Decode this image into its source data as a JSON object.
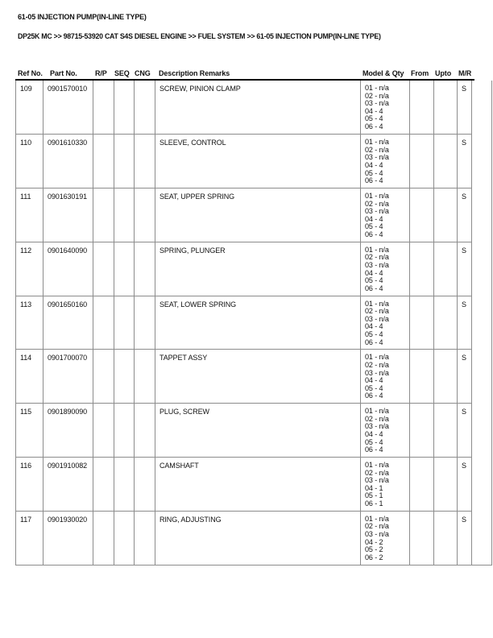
{
  "page": {
    "title": "61-05 INJECTION PUMP(IN-LINE TYPE)",
    "breadcrumb": "DP25K MC >> 98715-53920 CAT S4S DIESEL ENGINE >> FUEL SYSTEM >> 61-05 INJECTION PUMP(IN-LINE TYPE)"
  },
  "table": {
    "columns": [
      "Ref No.",
      "Part No.",
      "R/P",
      "SEQ",
      "CNG",
      "Description Remarks",
      "Model & Qty",
      "From",
      "Upto",
      "M/R"
    ],
    "rows": [
      {
        "ref_no": "109",
        "part_no": "0901570010",
        "rp": "",
        "seq": "",
        "cng": "",
        "description": "SCREW, PINION CLAMP",
        "model_qty": [
          "01 - n/a",
          "02 - n/a",
          "03 - n/a",
          "04 - 4",
          "05 - 4",
          "06 - 4"
        ],
        "from": "",
        "upto": "",
        "mr": "S"
      },
      {
        "ref_no": "110",
        "part_no": "0901610330",
        "rp": "",
        "seq": "",
        "cng": "",
        "description": "SLEEVE, CONTROL",
        "model_qty": [
          "01 - n/a",
          "02 - n/a",
          "03 - n/a",
          "04 - 4",
          "05 - 4",
          "06 - 4"
        ],
        "from": "",
        "upto": "",
        "mr": "S"
      },
      {
        "ref_no": "111",
        "part_no": "0901630191",
        "rp": "",
        "seq": "",
        "cng": "",
        "description": "SEAT, UPPER SPRING",
        "model_qty": [
          "01 - n/a",
          "02 - n/a",
          "03 - n/a",
          "04 - 4",
          "05 - 4",
          "06 - 4"
        ],
        "from": "",
        "upto": "",
        "mr": "S"
      },
      {
        "ref_no": "112",
        "part_no": "0901640090",
        "rp": "",
        "seq": "",
        "cng": "",
        "description": "SPRING, PLUNGER",
        "model_qty": [
          "01 - n/a",
          "02 - n/a",
          "03 - n/a",
          "04 - 4",
          "05 - 4",
          "06 - 4"
        ],
        "from": "",
        "upto": "",
        "mr": "S"
      },
      {
        "ref_no": "113",
        "part_no": "0901650160",
        "rp": "",
        "seq": "",
        "cng": "",
        "description": "SEAT, LOWER SPRING",
        "model_qty": [
          "01 - n/a",
          "02 - n/a",
          "03 - n/a",
          "04 - 4",
          "05 - 4",
          "06 - 4"
        ],
        "from": "",
        "upto": "",
        "mr": "S"
      },
      {
        "ref_no": "114",
        "part_no": "0901700070",
        "rp": "",
        "seq": "",
        "cng": "",
        "description": "TAPPET ASSY",
        "model_qty": [
          "01 - n/a",
          "02 - n/a",
          "03 - n/a",
          "04 - 4",
          "05 - 4",
          "06 - 4"
        ],
        "from": "",
        "upto": "",
        "mr": "S"
      },
      {
        "ref_no": "115",
        "part_no": "0901890090",
        "rp": "",
        "seq": "",
        "cng": "",
        "description": "PLUG, SCREW",
        "model_qty": [
          "01 - n/a",
          "02 - n/a",
          "03 - n/a",
          "04 - 4",
          "05 - 4",
          "06 - 4"
        ],
        "from": "",
        "upto": "",
        "mr": "S"
      },
      {
        "ref_no": "116",
        "part_no": "0901910082",
        "rp": "",
        "seq": "",
        "cng": "",
        "description": "CAMSHAFT",
        "model_qty": [
          "01 - n/a",
          "02 - n/a",
          "03 - n/a",
          "04 - 1",
          "05 - 1",
          "06 - 1"
        ],
        "from": "",
        "upto": "",
        "mr": "S"
      },
      {
        "ref_no": "117",
        "part_no": "0901930020",
        "rp": "",
        "seq": "",
        "cng": "",
        "description": "RING, ADJUSTING",
        "model_qty": [
          "01 - n/a",
          "02 - n/a",
          "03 - n/a",
          "04 - 2",
          "05 - 2",
          "06 - 2"
        ],
        "from": "",
        "upto": "",
        "mr": "S"
      }
    ]
  },
  "colors": {
    "background": "#ffffff",
    "text": "#111111",
    "border": "#8c8c8c",
    "rule": "#000000"
  }
}
